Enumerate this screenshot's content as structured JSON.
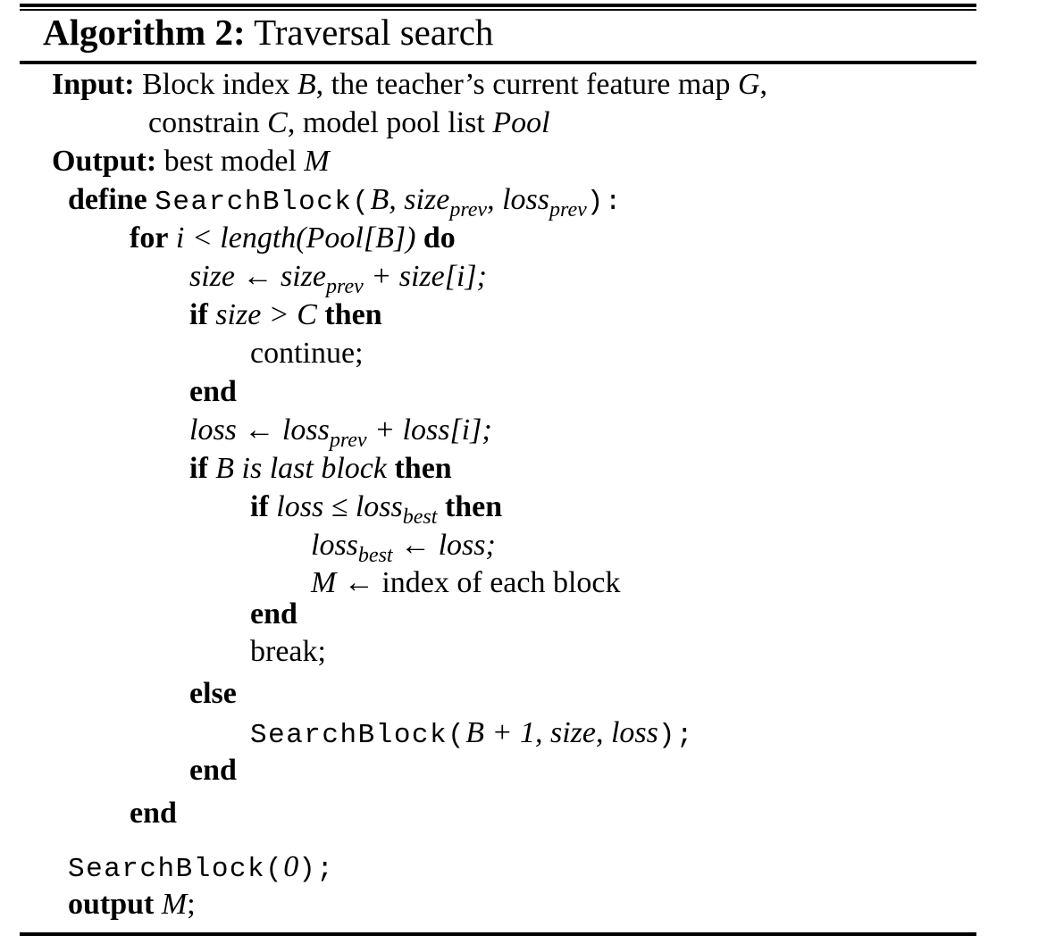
{
  "algorithm": {
    "label": "Algorithm 2:",
    "title": "Traversal search"
  },
  "input": {
    "label": "Input:",
    "text1_a": " Block index ",
    "B": "B",
    "text1_b": ", the teacher’s current feature map ",
    "G": "G",
    "text1_c": ",",
    "text2_a": "constrain ",
    "C": "C",
    "text2_b": ", model pool list ",
    "Pool": "Pool"
  },
  "output": {
    "label": "Output:",
    "text_a": " best model ",
    "M": "M"
  },
  "define": {
    "keyword": "define",
    "func": "SearchBlock",
    "open": "(",
    "args_a": "B, size",
    "sub_prev1": "prev",
    "args_b": ", loss",
    "sub_prev2": "prev",
    "close": "):"
  },
  "for_line": {
    "keyword": "for",
    "expr": "i < length(Pool[B])",
    "do": "do"
  },
  "size_line": {
    "lhs": "size ← size",
    "sub": "prev",
    "rhs": " + size[i];"
  },
  "if_size": {
    "keyword": "if",
    "expr": "size > C",
    "then": "then"
  },
  "continue_line": "continue;",
  "end1": "end",
  "loss_line": {
    "lhs": "loss ← loss",
    "sub": "prev",
    "rhs": " + loss[i];"
  },
  "if_last": {
    "keyword": "if",
    "expr": "B is last block",
    "then": "then"
  },
  "if_loss": {
    "keyword": "if",
    "expr": "loss ≤ loss",
    "sub": "best",
    "then": "then"
  },
  "lossbest_line": {
    "lhs": "loss",
    "sub": "best",
    "rhs": " ← loss;"
  },
  "m_line": {
    "M": "M",
    "rest": " ← index of each block"
  },
  "end2": "end",
  "break_line": "break;",
  "else_line": "else",
  "recurse_line": {
    "func": "SearchBlock",
    "open": "(",
    "args": "B + 1, size, loss",
    "close": ");"
  },
  "end3": "end",
  "end4": "end",
  "call_line": {
    "func": "SearchBlock",
    "open": "(",
    "arg": "0",
    "close": ");"
  },
  "output_line": {
    "keyword": "output",
    "M": "M",
    "semi": ";"
  }
}
